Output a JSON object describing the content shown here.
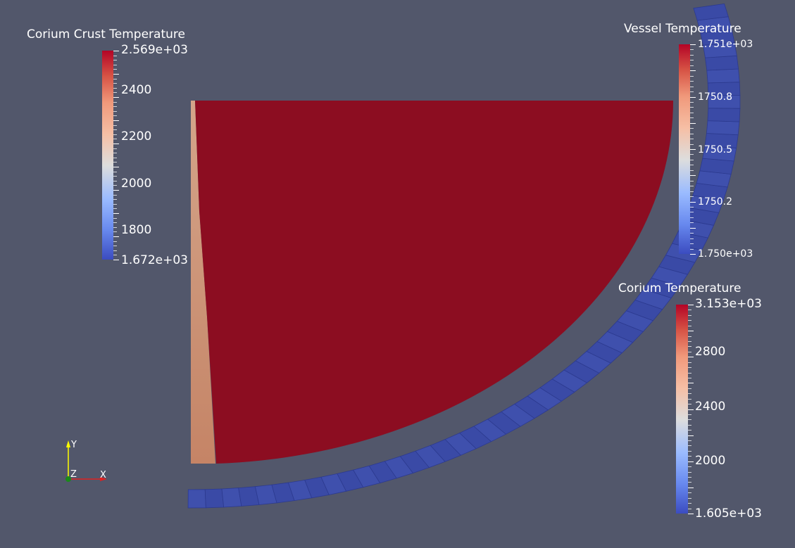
{
  "colors": {
    "background": "#52576b",
    "corium_fill": "#8c0d21",
    "crust_fill": "#c7916e",
    "crust_edge": "#d9a789",
    "vessel_fill": "#3b4ca8",
    "vessel_edge": "#2c3a8f",
    "colormap": [
      "#3b4cc0",
      "#6788ee",
      "#9abbff",
      "#c9d7f0",
      "#edd1c2",
      "#f7a889",
      "#e26952",
      "#b40426"
    ]
  },
  "legends": {
    "crust": {
      "title": "Corium Crust Temperature",
      "max_label": "2.569e+03",
      "min_label": "1.672e+03",
      "ticks": [
        "2400",
        "2200",
        "2000",
        "1800"
      ]
    },
    "vessel": {
      "title": "Vessel Temperature",
      "max_label": "1.751e+03",
      "min_label": "1.750e+03",
      "ticks": [
        "1750.8",
        "1750.5",
        "1750.2"
      ]
    },
    "corium": {
      "title": "Corium Temperature",
      "max_label": "3.153e+03",
      "min_label": "1.605e+03",
      "ticks": [
        "2800",
        "2400",
        "2000"
      ]
    }
  },
  "orientation_axes": {
    "y_label": "Y",
    "z_label": "Z",
    "x_label": "X",
    "icon": "orientation-axes-triad"
  }
}
